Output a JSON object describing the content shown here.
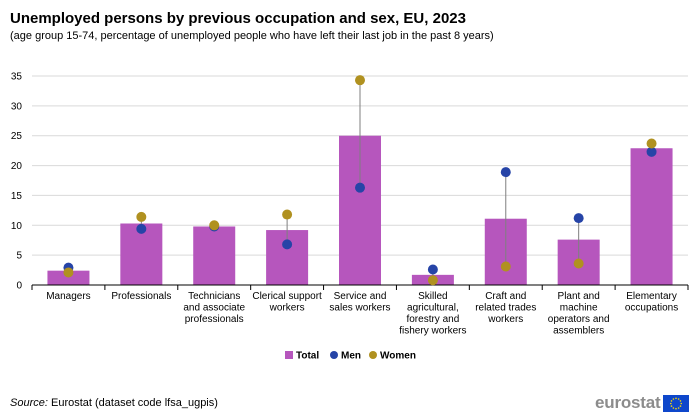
{
  "header": {
    "title": "Unemployed persons by previous occupation and sex, EU, 2023",
    "subtitle": "(age group 15-74, percentage of unemployed people who have left their last job in the past 8 years)"
  },
  "footer": {
    "source_label": "Source:",
    "source_text": "Eurostat (dataset code lfsa_ugpis)",
    "logo_text": "eurostat"
  },
  "colors": {
    "total": "#b656bd",
    "men": "#2644a7",
    "women": "#b09120",
    "grid": "#d9d9d9",
    "connector": "#7f7f7f",
    "flag_blue": "#0e47cb",
    "flag_star": "#ffdd00"
  },
  "chart_data": {
    "type": "bar",
    "title": "Unemployed persons by previous occupation and sex, EU, 2023",
    "xlabel": "",
    "ylabel": "",
    "ylim": [
      0,
      35
    ],
    "yticks": [
      0,
      5,
      10,
      15,
      20,
      25,
      30,
      35
    ],
    "grid": true,
    "legend_position": "bottom-center",
    "categories": [
      [
        "Managers"
      ],
      [
        "Professionals"
      ],
      [
        "Technicians",
        "and associate",
        "professionals"
      ],
      [
        "Clerical support",
        "workers"
      ],
      [
        "Service and",
        "sales workers"
      ],
      [
        "Skilled",
        "agricultural,",
        "forestry and",
        "fishery workers"
      ],
      [
        "Craft and",
        "related trades",
        "workers"
      ],
      [
        "Plant and",
        "machine",
        "operators and",
        "assemblers"
      ],
      [
        "Elementary",
        "occupations"
      ]
    ],
    "series": [
      {
        "name": "Total",
        "kind": "bar",
        "values": [
          2.4,
          10.3,
          9.8,
          9.2,
          25.0,
          1.7,
          11.1,
          7.6,
          22.9
        ]
      },
      {
        "name": "Men",
        "kind": "point",
        "values": [
          2.9,
          9.4,
          9.8,
          6.8,
          16.3,
          2.6,
          18.9,
          11.2,
          22.3
        ]
      },
      {
        "name": "Women",
        "kind": "point",
        "values": [
          2.1,
          11.4,
          10.0,
          11.8,
          34.3,
          0.8,
          3.1,
          3.6,
          23.7
        ]
      }
    ]
  }
}
